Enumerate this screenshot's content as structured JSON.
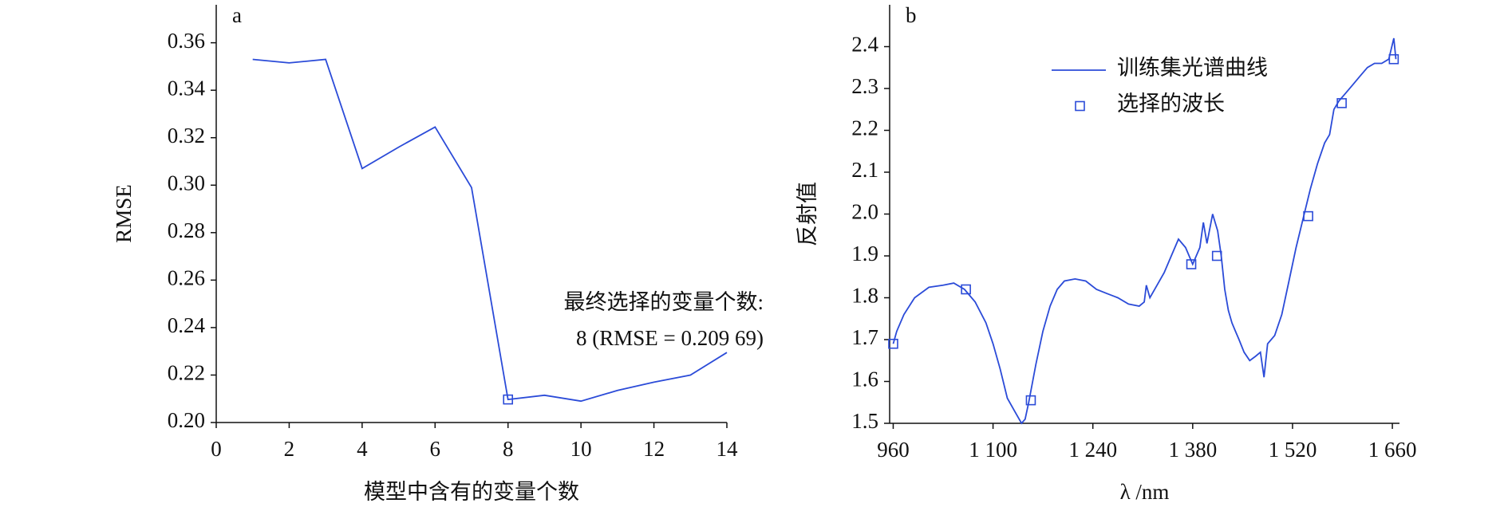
{
  "chart_data": [
    {
      "type": "line",
      "label": "a",
      "xlabel": "模型中含有的变量个数",
      "ylabel": "RMSE",
      "color": "#2b4bd8",
      "x": [
        1,
        2,
        3,
        4,
        5,
        6,
        7,
        8,
        9,
        10,
        11,
        12,
        13,
        14
      ],
      "values": [
        0.353,
        0.3515,
        0.353,
        0.307,
        0.316,
        0.3245,
        0.299,
        0.2097,
        0.2115,
        0.209,
        0.2135,
        0.217,
        0.22,
        0.2295
      ],
      "markers": {
        "x": [
          8
        ],
        "values": [
          0.2097
        ]
      },
      "annotation": [
        "最终选择的变量个数:",
        "8 (RMSE = 0.209 69)"
      ],
      "xlim": [
        0,
        14
      ],
      "xticks": [
        0,
        2,
        4,
        6,
        8,
        10,
        12,
        14
      ],
      "ylim": [
        0.2,
        0.376
      ],
      "yticks": [
        {
          "value": 0.2,
          "label": "0.20"
        },
        {
          "value": 0.22,
          "label": "0.22"
        },
        {
          "value": 0.24,
          "label": "0.24"
        },
        {
          "value": 0.26,
          "label": "0.26"
        },
        {
          "value": 0.28,
          "label": "0.28"
        },
        {
          "value": 0.3,
          "label": "0.30"
        },
        {
          "value": 0.32,
          "label": "0.32"
        },
        {
          "value": 0.34,
          "label": "0.34"
        },
        {
          "value": 0.36,
          "label": "0.36"
        }
      ]
    },
    {
      "type": "line",
      "label": "b",
      "xlabel": "λ /nm",
      "ylabel": "反射值",
      "color": "#2b4bd8",
      "series": [
        {
          "name": "训练集光谱曲线",
          "color": "#2b4bd8",
          "x": [
            960,
            965,
            975,
            990,
            1010,
            1030,
            1045,
            1060,
            1075,
            1090,
            1100,
            1110,
            1120,
            1130,
            1140,
            1145,
            1150,
            1160,
            1170,
            1180,
            1190,
            1200,
            1215,
            1230,
            1245,
            1260,
            1275,
            1290,
            1305,
            1312,
            1315,
            1320,
            1330,
            1340,
            1350,
            1360,
            1370,
            1380,
            1390,
            1395,
            1400,
            1408,
            1415,
            1420,
            1425,
            1430,
            1435,
            1440,
            1445,
            1452,
            1460,
            1468,
            1475,
            1480,
            1485,
            1495,
            1505,
            1515,
            1525,
            1535,
            1545,
            1555,
            1565,
            1572,
            1578,
            1585,
            1595,
            1605,
            1615,
            1625,
            1635,
            1645,
            1655,
            1662,
            1665
          ],
          "values": [
            1.69,
            1.72,
            1.76,
            1.8,
            1.825,
            1.83,
            1.835,
            1.82,
            1.79,
            1.74,
            1.69,
            1.63,
            1.56,
            1.53,
            1.5,
            1.51,
            1.55,
            1.64,
            1.72,
            1.78,
            1.82,
            1.84,
            1.845,
            1.84,
            1.82,
            1.81,
            1.8,
            1.785,
            1.78,
            1.79,
            1.83,
            1.8,
            1.83,
            1.86,
            1.9,
            1.94,
            1.92,
            1.88,
            1.92,
            1.98,
            1.93,
            2.0,
            1.96,
            1.9,
            1.82,
            1.77,
            1.74,
            1.72,
            1.7,
            1.67,
            1.65,
            1.66,
            1.67,
            1.61,
            1.69,
            1.71,
            1.76,
            1.84,
            1.92,
            1.99,
            2.06,
            2.12,
            2.17,
            2.19,
            2.25,
            2.27,
            2.29,
            2.31,
            2.33,
            2.35,
            2.36,
            2.36,
            2.37,
            2.42,
            2.37
          ]
        },
        {
          "name": "选择的波长",
          "color": "#2b4bd8",
          "marker": "square",
          "x": [
            960,
            1062,
            1153,
            1378,
            1414,
            1542,
            1589,
            1662
          ],
          "values": [
            1.69,
            1.82,
            1.555,
            1.88,
            1.9,
            1.995,
            2.265,
            2.37
          ]
        }
      ],
      "xlim": [
        955,
        1670
      ],
      "xticks": [
        960,
        {
          "value": 1100,
          "label": "1 100"
        },
        {
          "value": 1240,
          "label": "1 240"
        },
        {
          "value": 1380,
          "label": "1 380"
        },
        {
          "value": 1520,
          "label": "1 520"
        },
        {
          "value": 1660,
          "label": "1 660"
        }
      ],
      "ylim": [
        1.5,
        2.5
      ],
      "yticks": [
        1.5,
        1.6,
        1.7,
        1.8,
        1.9,
        {
          "value": 2.0,
          "label": "2.0"
        },
        2.1,
        2.2,
        2.3,
        2.4
      ],
      "legend": "upper center"
    }
  ]
}
